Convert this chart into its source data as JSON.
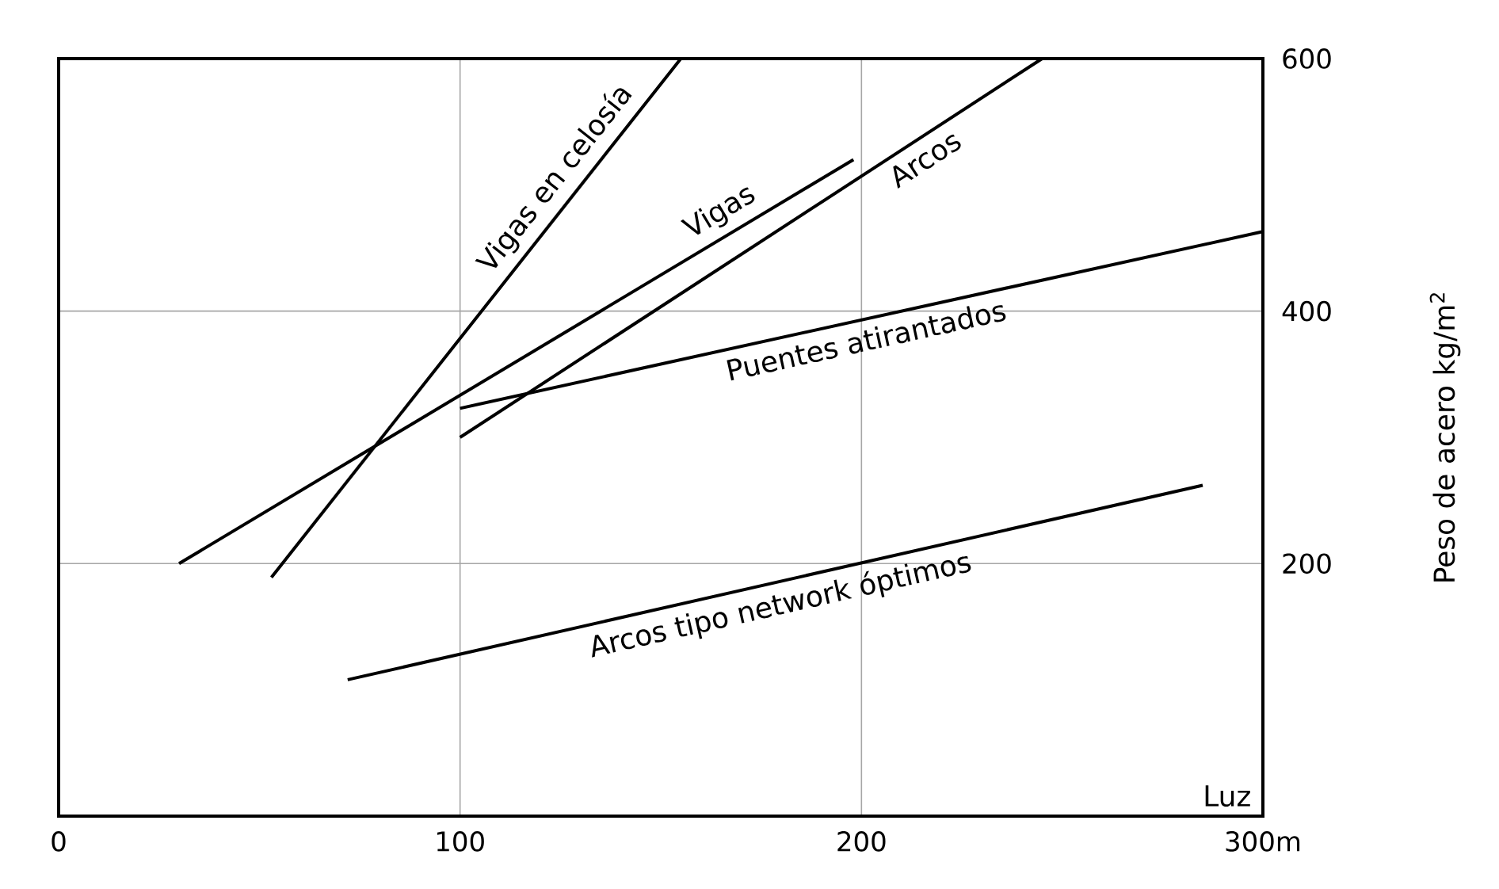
{
  "chart_data": {
    "type": "line",
    "xlabel": "Luz",
    "ylabel": "Peso de acero kg/m$^{2}$",
    "xlim": [
      0,
      300
    ],
    "ylim": [
      0,
      600
    ],
    "xticks": [
      0,
      100,
      200,
      {
        "value": 300,
        "label": "300m"
      }
    ],
    "yticks": [
      200,
      400,
      600
    ],
    "grid": true,
    "legend": false,
    "marker": "none",
    "line_style": "solid",
    "series": [
      {
        "name": "Vigas en celosía",
        "color": "#000000",
        "x": [
          53,
          155
        ],
        "values": [
          189,
          600
        ]
      },
      {
        "name": "Vigas",
        "color": "#000000",
        "x": [
          30,
          198
        ],
        "values": [
          200,
          520
        ]
      },
      {
        "name": "Arcos",
        "color": "#000000",
        "x": [
          100,
          245
        ],
        "values": [
          300,
          600
        ]
      },
      {
        "name": "Puentes atirantados",
        "color": "#000000",
        "x": [
          100,
          300
        ],
        "values": [
          323,
          463
        ]
      },
      {
        "name": "Arcos tipo network óptimos",
        "color": "#000000",
        "x": [
          72,
          285
        ],
        "values": [
          108,
          262
        ]
      }
    ]
  }
}
